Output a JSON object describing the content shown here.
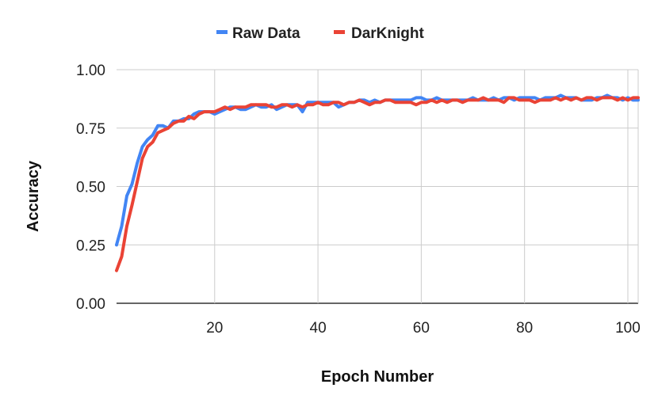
{
  "chart_data": {
    "type": "line",
    "title": "",
    "xlabel": "Epoch Number",
    "ylabel": "Accuracy",
    "xlim": [
      1,
      102
    ],
    "ylim": [
      0,
      1
    ],
    "x_ticks": [
      20,
      40,
      60,
      80,
      100
    ],
    "y_ticks": [
      0,
      0.25,
      0.5,
      0.75,
      1
    ],
    "y_tick_labels": [
      "0.00",
      "0.25",
      "0.50",
      "0.75",
      "1.00"
    ],
    "grid": true,
    "legend_position": "top",
    "x": [
      1,
      2,
      3,
      4,
      5,
      6,
      7,
      8,
      9,
      10,
      11,
      12,
      13,
      14,
      15,
      16,
      17,
      18,
      19,
      20,
      21,
      22,
      23,
      24,
      25,
      26,
      27,
      28,
      29,
      30,
      31,
      32,
      33,
      34,
      35,
      36,
      37,
      38,
      39,
      40,
      41,
      42,
      43,
      44,
      45,
      46,
      47,
      48,
      49,
      50,
      51,
      52,
      53,
      54,
      55,
      56,
      57,
      58,
      59,
      60,
      61,
      62,
      63,
      64,
      65,
      66,
      67,
      68,
      69,
      70,
      71,
      72,
      73,
      74,
      75,
      76,
      77,
      78,
      79,
      80,
      81,
      82,
      83,
      84,
      85,
      86,
      87,
      88,
      89,
      90,
      91,
      92,
      93,
      94,
      95,
      96,
      97,
      98,
      99,
      100,
      101,
      102
    ],
    "series": [
      {
        "name": "Raw Data",
        "color": "#4285f4",
        "values": [
          0.25,
          0.33,
          0.46,
          0.51,
          0.6,
          0.67,
          0.7,
          0.72,
          0.76,
          0.76,
          0.75,
          0.78,
          0.78,
          0.79,
          0.79,
          0.81,
          0.82,
          0.82,
          0.82,
          0.81,
          0.82,
          0.83,
          0.84,
          0.84,
          0.83,
          0.83,
          0.84,
          0.85,
          0.84,
          0.84,
          0.85,
          0.83,
          0.84,
          0.85,
          0.85,
          0.85,
          0.82,
          0.86,
          0.86,
          0.86,
          0.86,
          0.86,
          0.86,
          0.84,
          0.85,
          0.86,
          0.86,
          0.87,
          0.87,
          0.86,
          0.87,
          0.86,
          0.87,
          0.87,
          0.87,
          0.87,
          0.87,
          0.87,
          0.88,
          0.88,
          0.87,
          0.87,
          0.88,
          0.87,
          0.87,
          0.87,
          0.87,
          0.87,
          0.87,
          0.88,
          0.87,
          0.87,
          0.87,
          0.88,
          0.87,
          0.88,
          0.88,
          0.87,
          0.88,
          0.88,
          0.88,
          0.88,
          0.87,
          0.88,
          0.88,
          0.88,
          0.89,
          0.88,
          0.88,
          0.88,
          0.87,
          0.87,
          0.87,
          0.88,
          0.88,
          0.89,
          0.88,
          0.88,
          0.87,
          0.88,
          0.87,
          0.87
        ]
      },
      {
        "name": "DarKnight",
        "color": "#ea4335",
        "values": [
          0.14,
          0.2,
          0.33,
          0.42,
          0.52,
          0.62,
          0.67,
          0.69,
          0.73,
          0.74,
          0.75,
          0.77,
          0.78,
          0.78,
          0.8,
          0.79,
          0.81,
          0.82,
          0.82,
          0.82,
          0.83,
          0.84,
          0.83,
          0.84,
          0.84,
          0.84,
          0.85,
          0.85,
          0.85,
          0.85,
          0.84,
          0.84,
          0.85,
          0.85,
          0.84,
          0.85,
          0.84,
          0.85,
          0.85,
          0.86,
          0.85,
          0.85,
          0.86,
          0.86,
          0.85,
          0.86,
          0.86,
          0.87,
          0.86,
          0.85,
          0.86,
          0.86,
          0.87,
          0.87,
          0.86,
          0.86,
          0.86,
          0.86,
          0.85,
          0.86,
          0.86,
          0.87,
          0.86,
          0.87,
          0.86,
          0.87,
          0.87,
          0.86,
          0.87,
          0.87,
          0.87,
          0.88,
          0.87,
          0.87,
          0.87,
          0.86,
          0.88,
          0.88,
          0.87,
          0.87,
          0.87,
          0.86,
          0.87,
          0.87,
          0.87,
          0.88,
          0.87,
          0.88,
          0.87,
          0.88,
          0.87,
          0.88,
          0.88,
          0.87,
          0.88,
          0.88,
          0.88,
          0.87,
          0.88,
          0.87,
          0.88,
          0.88
        ]
      }
    ]
  }
}
